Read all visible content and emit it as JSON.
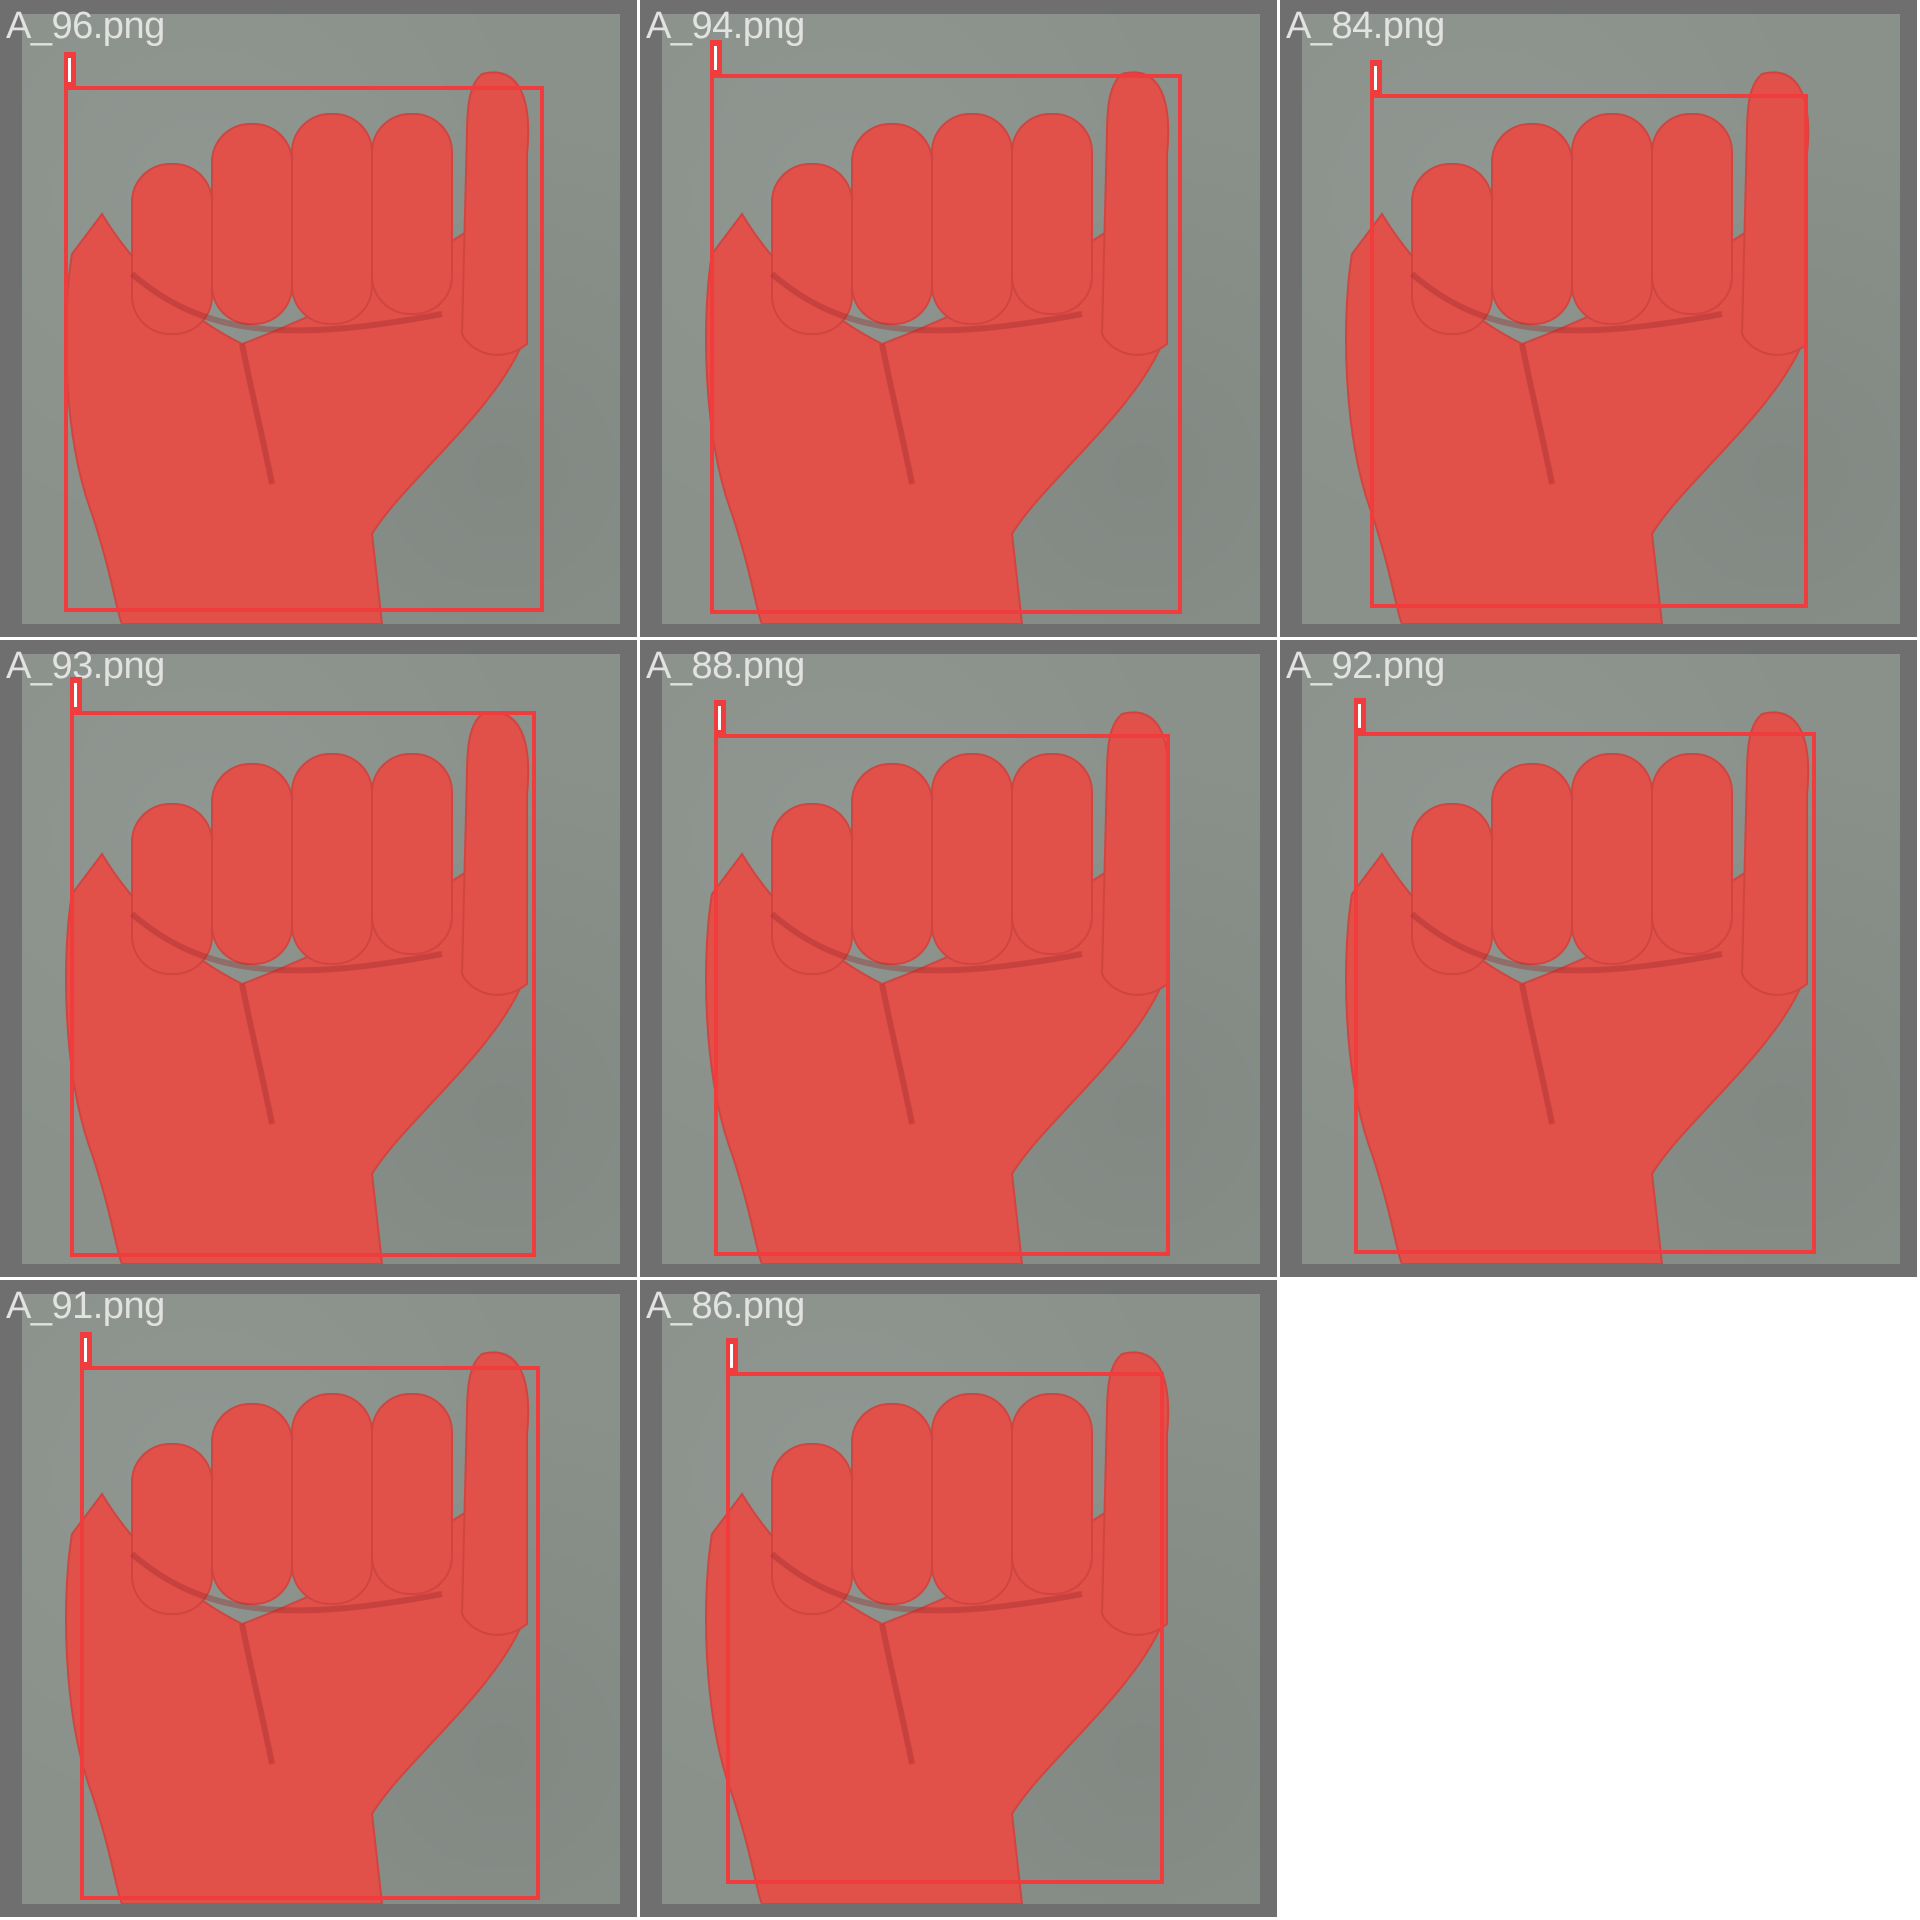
{
  "colors": {
    "tile_background": "#6f6f6f",
    "photo_background": "#8a918b",
    "hand_mask": "#e2504a",
    "bounding_box": "#f03c3c",
    "filename_text": "#e2e2e2"
  },
  "tiles": [
    {
      "filename": "A_96.png",
      "label": "l"
    },
    {
      "filename": "A_94.png",
      "label": "l"
    },
    {
      "filename": "A_84.png",
      "label": "l"
    },
    {
      "filename": "A_93.png",
      "label": "l"
    },
    {
      "filename": "A_88.png",
      "label": "l"
    },
    {
      "filename": "A_92.png",
      "label": "l"
    },
    {
      "filename": "A_91.png",
      "label": "l"
    },
    {
      "filename": "A_86.png",
      "label": "l"
    }
  ]
}
